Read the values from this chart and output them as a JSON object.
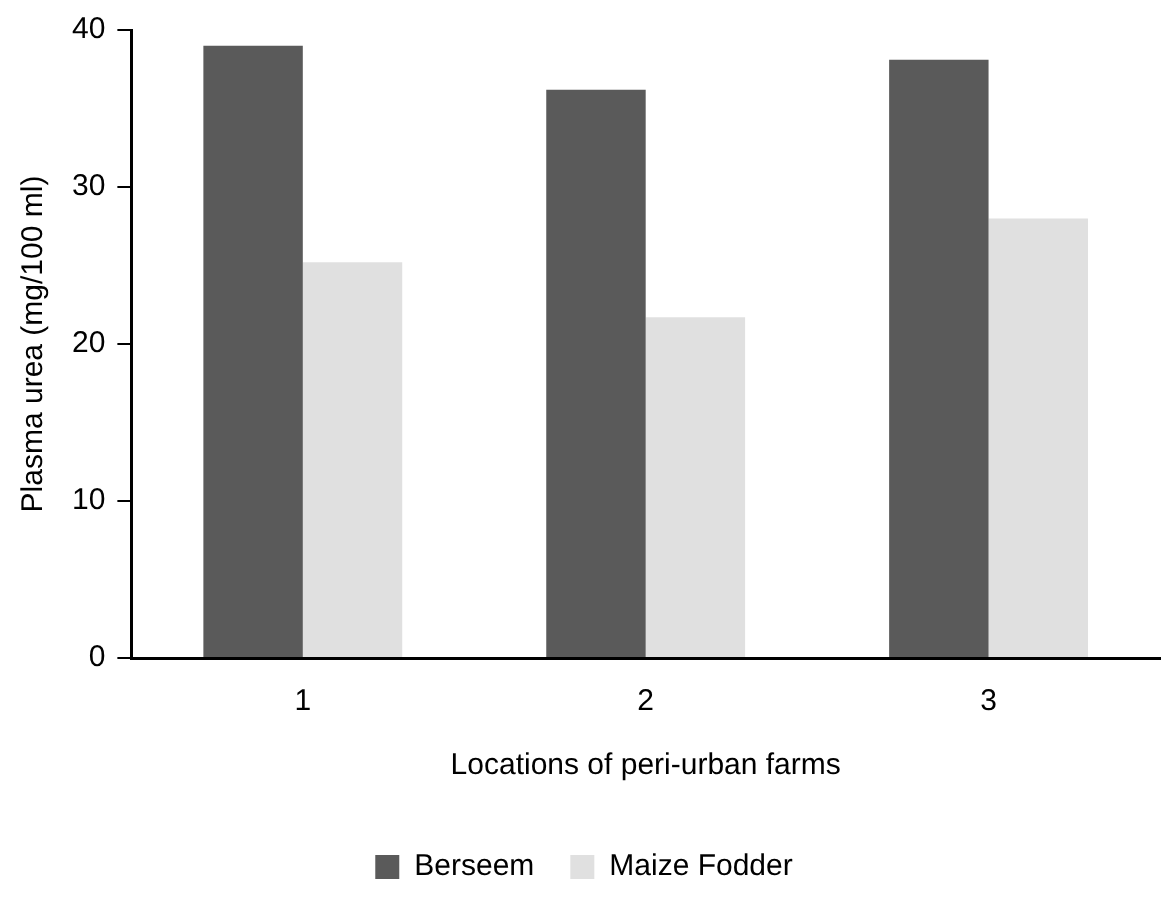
{
  "chart_data": {
    "type": "bar",
    "xlabel": "Locations of peri-urban farms",
    "ylabel": "Plasma urea (mg/100 ml)",
    "categories": [
      "1",
      "2",
      "3"
    ],
    "series": [
      {
        "name": "Berseem",
        "color": "#5a5a5a",
        "values": [
          39.0,
          36.2,
          38.1
        ]
      },
      {
        "name": "Maize Fodder",
        "color": "#e0e0e0",
        "values": [
          25.2,
          21.7,
          28.0
        ]
      }
    ],
    "ylim": [
      0,
      40
    ],
    "yticks": [
      0,
      10,
      20,
      30,
      40
    ],
    "grid": false,
    "legend": "bottom"
  }
}
